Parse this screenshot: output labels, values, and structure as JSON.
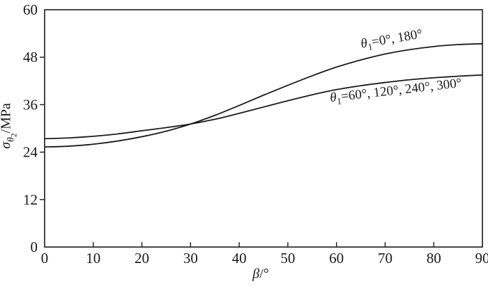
{
  "chart_data": {
    "type": "line",
    "title": "",
    "xlabel": "β/°",
    "ylabel": "σ_θ2/MPa",
    "xlim": [
      0,
      90
    ],
    "ylim": [
      0,
      60
    ],
    "x_ticks": [
      0,
      10,
      20,
      30,
      40,
      50,
      60,
      70,
      80,
      90
    ],
    "y_ticks": [
      0,
      12,
      24,
      36,
      48,
      60
    ],
    "grid": false,
    "legend_position": "inline-labels",
    "line_color": "#1a1a1a",
    "background": "#ffffff",
    "x": [
      0,
      5,
      10,
      15,
      20,
      25,
      30,
      35,
      40,
      45,
      50,
      55,
      60,
      65,
      70,
      75,
      80,
      85,
      90
    ],
    "series": [
      {
        "name": "θ1=0°, 180°",
        "values": [
          25.3,
          25.5,
          26.0,
          26.8,
          27.9,
          29.3,
          31.1,
          33.3,
          35.8,
          38.4,
          40.9,
          43.3,
          45.5,
          47.3,
          48.8,
          49.9,
          50.7,
          51.2,
          51.4
        ]
      },
      {
        "name": "θ1=60°, 120°, 240°, 300°",
        "values": [
          27.4,
          27.6,
          28.0,
          28.6,
          29.4,
          30.2,
          31.1,
          32.3,
          33.8,
          35.4,
          37.0,
          38.5,
          39.8,
          40.8,
          41.6,
          42.3,
          42.8,
          43.2,
          43.5
        ]
      }
    ]
  },
  "labels": {
    "y_axis": {
      "sigma": "σ",
      "sub_theta": "θ",
      "sub_index": "2",
      "unit": "/MPa"
    },
    "x_axis": {
      "beta": "β",
      "unit": "/°"
    },
    "series1": {
      "theta": "θ",
      "sub": "1",
      "rest": "=0°, 180°"
    },
    "series2": {
      "theta": "θ",
      "sub": "1",
      "rest": "=60°, 120°, 240°, 300°"
    }
  }
}
